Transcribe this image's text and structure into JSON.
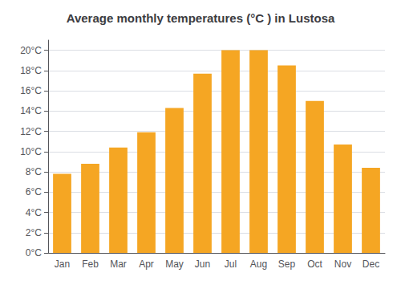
{
  "chart_data": {
    "type": "bar",
    "title": "Average monthly temperatures (°C ) in Lustosa",
    "categories": [
      "Jan",
      "Feb",
      "Mar",
      "Apr",
      "May",
      "Jun",
      "Jul",
      "Aug",
      "Sep",
      "Oct",
      "Nov",
      "Dec"
    ],
    "values": [
      7.8,
      8.8,
      10.4,
      11.9,
      14.3,
      17.7,
      20.0,
      20.0,
      18.5,
      15.0,
      10.7,
      8.4
    ],
    "color": "#F5A623",
    "ylim": [
      0,
      21
    ],
    "yticks": [
      {
        "value": 0,
        "label": "0°C"
      },
      {
        "value": 2,
        "label": "2°C"
      },
      {
        "value": 4,
        "label": "4°C"
      },
      {
        "value": 6,
        "label": "6°C"
      },
      {
        "value": 8,
        "label": "8°C"
      },
      {
        "value": 10,
        "label": "10°C"
      },
      {
        "value": 12,
        "label": "12°C"
      },
      {
        "value": 14,
        "label": "14°C"
      },
      {
        "value": 16,
        "label": "16°C"
      },
      {
        "value": 18,
        "label": "18°C"
      },
      {
        "value": 20,
        "label": "20°C"
      }
    ],
    "grid": true
  }
}
